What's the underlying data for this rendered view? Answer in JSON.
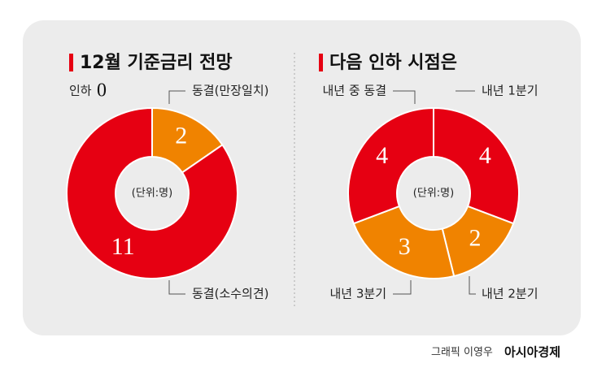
{
  "chart_data": [
    {
      "type": "pie",
      "title": "12월 기준금리 전망",
      "center_label": "(단위:명)",
      "categories": [
        "인하",
        "동결(만장일치)",
        "동결(소수의견)"
      ],
      "values": [
        0,
        2,
        11
      ],
      "colors": [
        "#e60012",
        "#f08300",
        "#e60012"
      ]
    },
    {
      "type": "pie",
      "title": "다음 인하 시점은",
      "center_label": "(단위:명)",
      "categories": [
        "내년 1분기",
        "내년 2분기",
        "내년 3분기",
        "내년 중 동결"
      ],
      "values": [
        4,
        2,
        3,
        4
      ],
      "colors": [
        "#e60012",
        "#f08300",
        "#f08300",
        "#e60012"
      ]
    }
  ],
  "credit": "그래픽 이영우",
  "brand": "아시아경제"
}
